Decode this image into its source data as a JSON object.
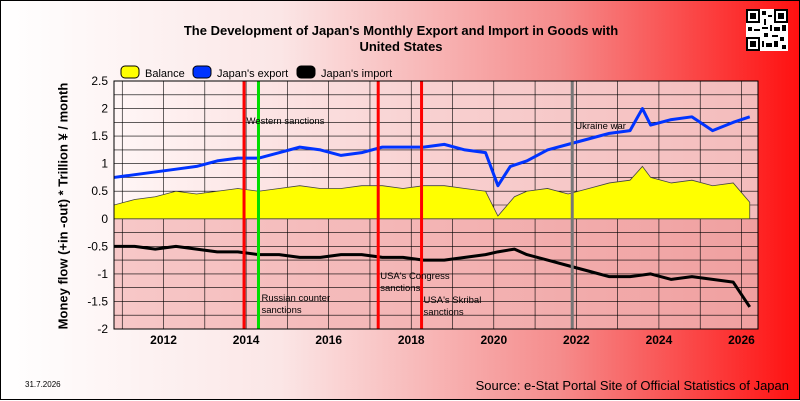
{
  "chart_data": {
    "type": "line",
    "title": "The Development of Japan's Monthly Export and Import in Goods with\nUnited States",
    "ylabel": "Money flow (+in -out) * Trillion ¥ / month",
    "xlabel": "",
    "x_range": [
      2010.8,
      2026.4
    ],
    "ylim": [
      -2,
      2.5
    ],
    "x_ticks": [
      2012,
      2014,
      2016,
      2018,
      2020,
      2022,
      2024,
      2026
    ],
    "y_ticks": [
      2.5,
      2,
      1.5,
      1,
      0.5,
      0,
      -0.5,
      -1,
      -1.5,
      -2
    ],
    "grid": true,
    "legend_placement": "top-left",
    "series": [
      {
        "name": "Balance",
        "type": "area",
        "color": "#ffff00",
        "x": [
          2010.8,
          2011.3,
          2011.8,
          2012.3,
          2012.8,
          2013.3,
          2013.8,
          2014.3,
          2014.8,
          2015.3,
          2015.8,
          2016.3,
          2016.8,
          2017.3,
          2017.8,
          2018.3,
          2018.8,
          2019.3,
          2019.8,
          2020.1,
          2020.5,
          2020.8,
          2021.3,
          2021.8,
          2022.3,
          2022.8,
          2023.3,
          2023.6,
          2023.8,
          2024.3,
          2024.8,
          2025.3,
          2025.8,
          2026.2
        ],
        "values": [
          0.25,
          0.35,
          0.4,
          0.5,
          0.45,
          0.5,
          0.55,
          0.5,
          0.55,
          0.6,
          0.55,
          0.55,
          0.6,
          0.6,
          0.55,
          0.6,
          0.6,
          0.55,
          0.5,
          0.05,
          0.4,
          0.5,
          0.55,
          0.45,
          0.55,
          0.65,
          0.7,
          0.95,
          0.75,
          0.65,
          0.7,
          0.6,
          0.65,
          0.3
        ]
      },
      {
        "name": "Japan's export",
        "color": "#0033ff",
        "x": [
          2010.8,
          2011.3,
          2011.8,
          2012.3,
          2012.8,
          2013.3,
          2013.8,
          2014.3,
          2014.8,
          2015.3,
          2015.8,
          2016.3,
          2016.8,
          2017.3,
          2017.8,
          2018.3,
          2018.8,
          2019.3,
          2019.8,
          2020.1,
          2020.4,
          2020.8,
          2021.3,
          2021.8,
          2022.3,
          2022.8,
          2023.3,
          2023.6,
          2023.8,
          2024.3,
          2024.8,
          2025.3,
          2025.8,
          2026.2
        ],
        "values": [
          0.75,
          0.8,
          0.85,
          0.9,
          0.95,
          1.05,
          1.1,
          1.1,
          1.2,
          1.3,
          1.25,
          1.15,
          1.2,
          1.3,
          1.3,
          1.3,
          1.35,
          1.25,
          1.2,
          0.6,
          0.95,
          1.05,
          1.25,
          1.35,
          1.45,
          1.55,
          1.6,
          2.0,
          1.7,
          1.8,
          1.85,
          1.6,
          1.75,
          1.85
        ]
      },
      {
        "name": "Japan's import",
        "color": "#000000",
        "x": [
          2010.8,
          2011.3,
          2011.8,
          2012.3,
          2012.8,
          2013.3,
          2013.8,
          2014.3,
          2014.8,
          2015.3,
          2015.8,
          2016.3,
          2016.8,
          2017.3,
          2017.8,
          2018.3,
          2018.8,
          2019.3,
          2019.8,
          2020.1,
          2020.5,
          2020.8,
          2021.3,
          2021.8,
          2022.3,
          2022.8,
          2023.3,
          2023.8,
          2024.3,
          2024.8,
          2025.3,
          2025.8,
          2026.2
        ],
        "values": [
          -0.5,
          -0.5,
          -0.55,
          -0.5,
          -0.55,
          -0.6,
          -0.6,
          -0.65,
          -0.65,
          -0.7,
          -0.7,
          -0.65,
          -0.65,
          -0.7,
          -0.7,
          -0.75,
          -0.75,
          -0.7,
          -0.65,
          -0.6,
          -0.55,
          -0.65,
          -0.75,
          -0.85,
          -0.95,
          -1.05,
          -1.05,
          -1.0,
          -1.1,
          -1.05,
          -1.1,
          -1.15,
          -1.6
        ]
      }
    ],
    "vertical_markers": [
      {
        "x": 2013.95,
        "color": "#ff0000",
        "label": ""
      },
      {
        "x": 2014.3,
        "color": "#00dd00",
        "label": "Russian counter sanctions"
      },
      {
        "x": 2014.3,
        "color": "#00dd00",
        "label": "Western sanctions"
      },
      {
        "x": 2017.2,
        "color": "#ff0000",
        "label": "USA's Congress sanctions"
      },
      {
        "x": 2018.25,
        "color": "#ff0000",
        "label": "USA's Skribal sanctions"
      },
      {
        "x": 2021.9,
        "color": "#777777",
        "label": "Ukraine war"
      }
    ]
  },
  "qr_label": "QR code",
  "date_stamp": "31.7.2026",
  "source": "Source: e-Stat Portal Site of Official Statistics of Japan"
}
